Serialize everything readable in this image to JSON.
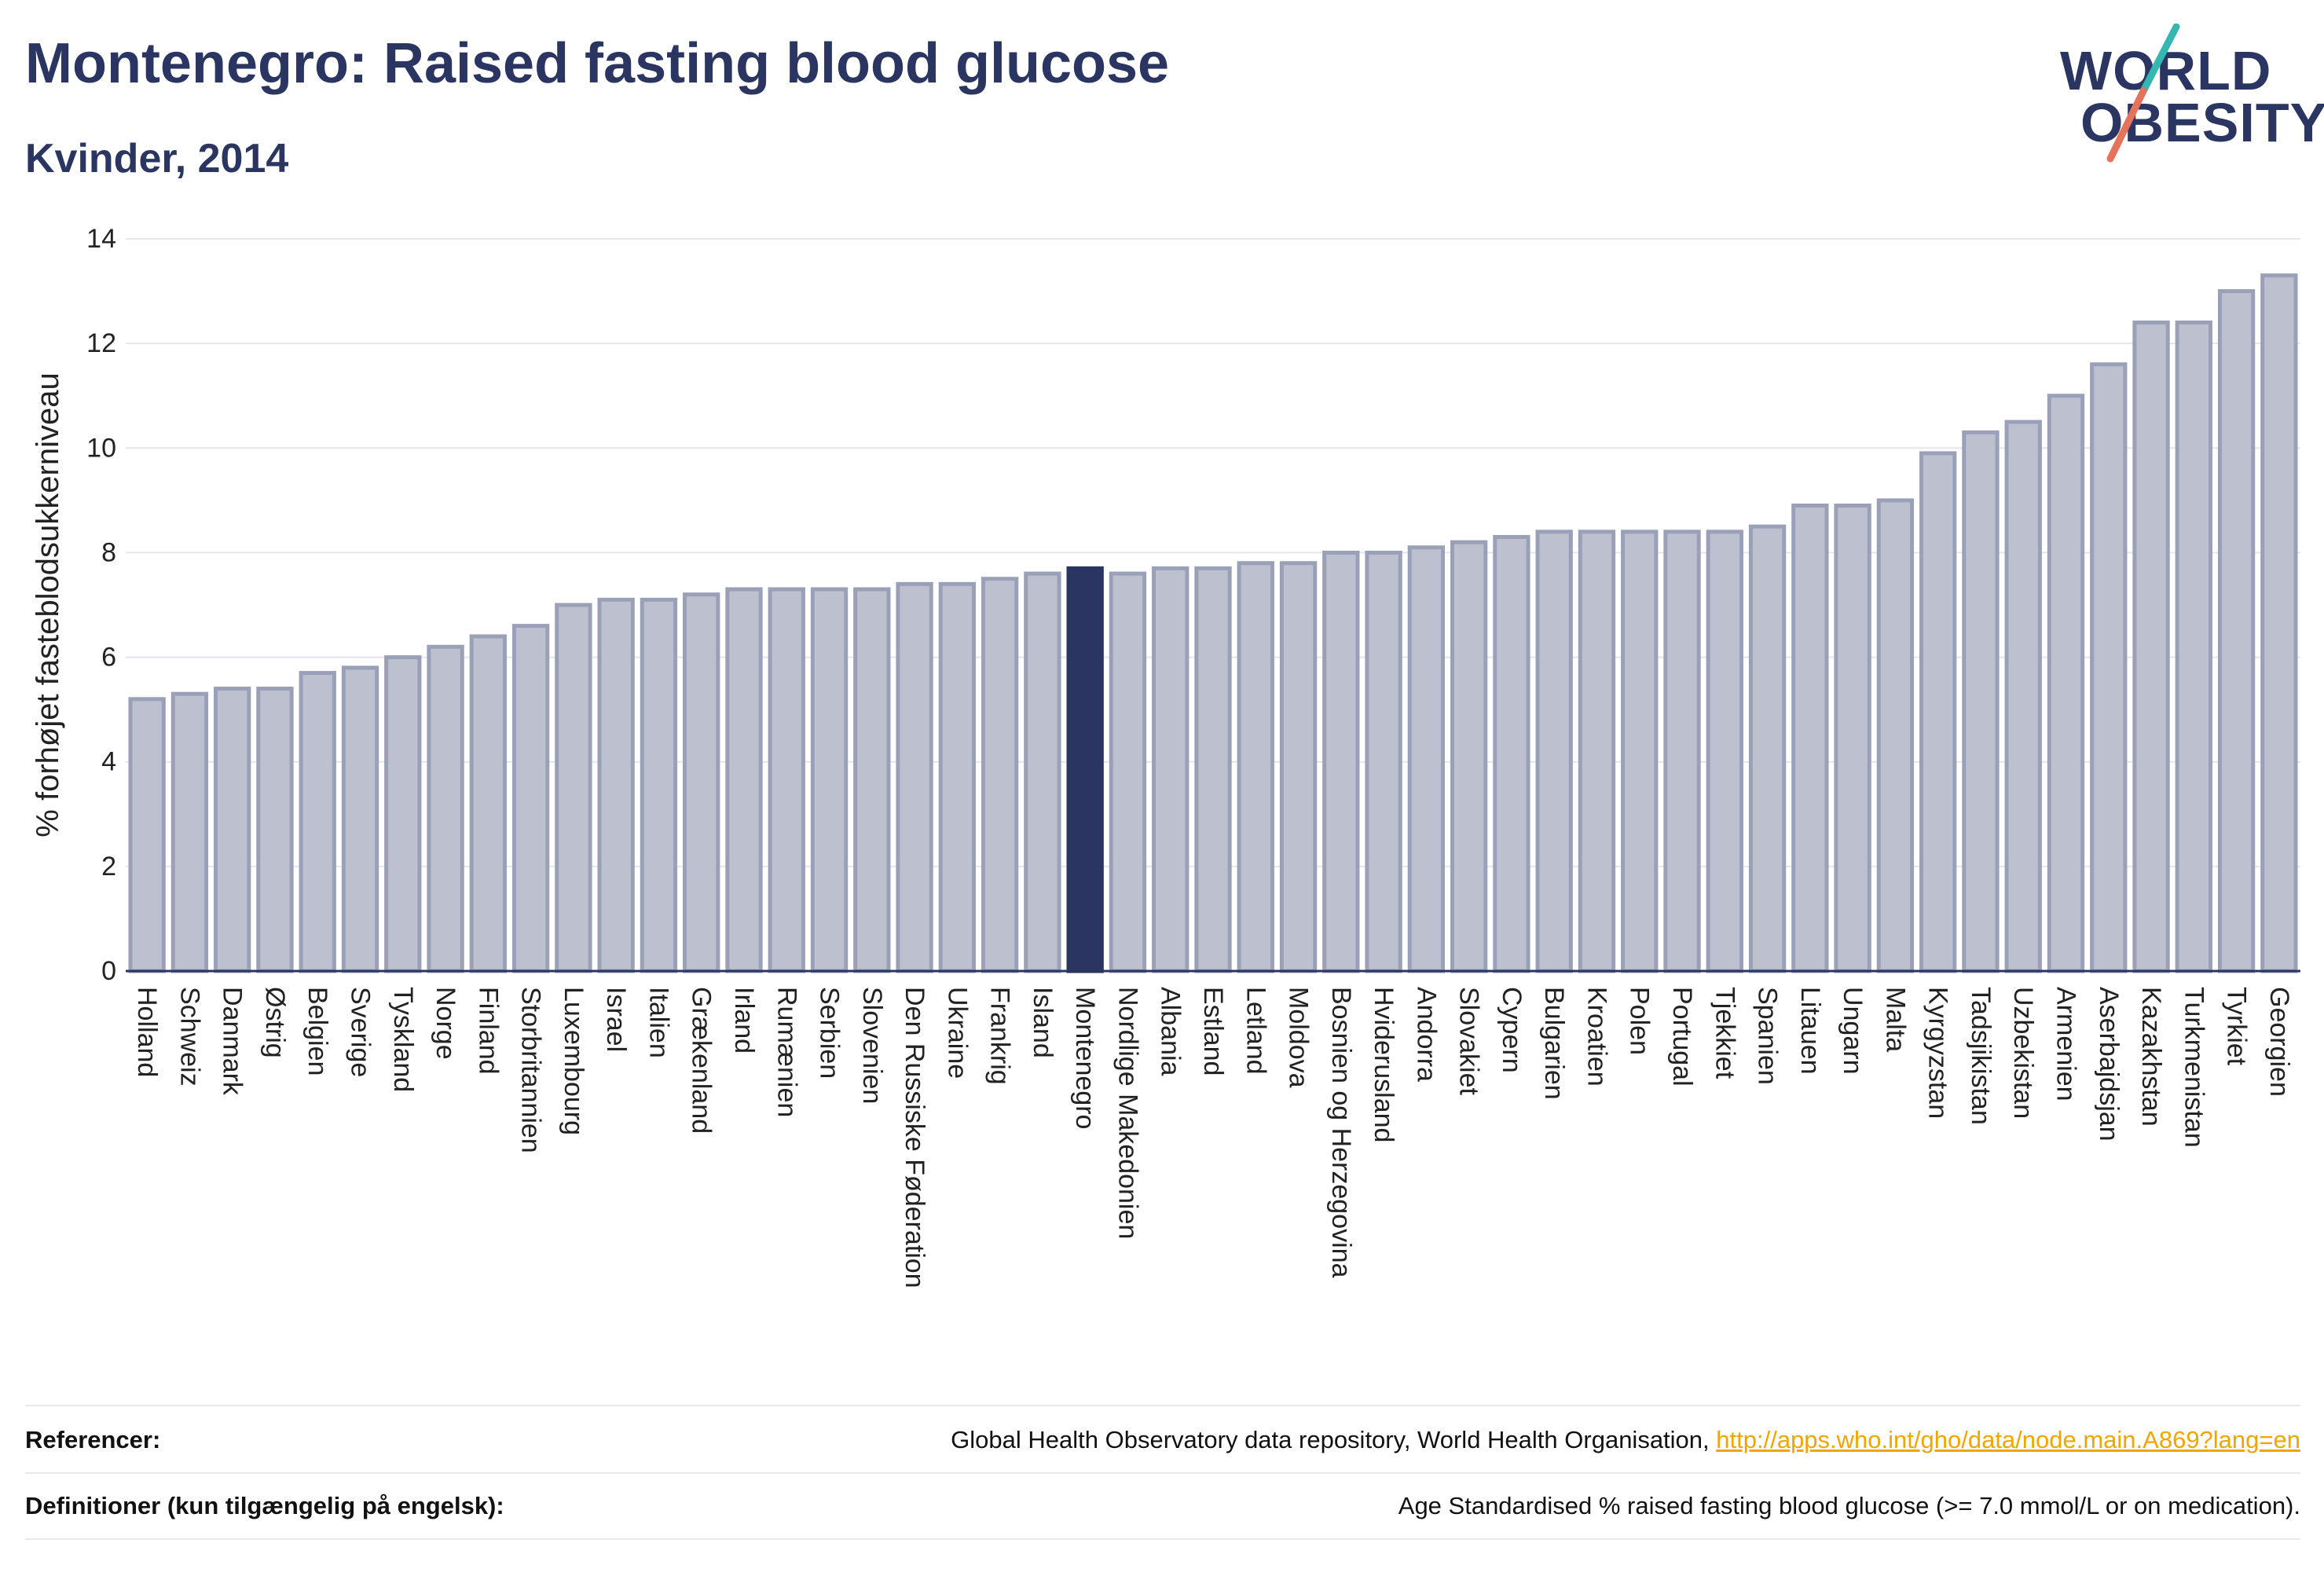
{
  "header": {
    "title": "Montenegro: Raised fasting blood glucose",
    "subtitle": "Kvinder, 2014",
    "logo_line1": "WORLD",
    "logo_line2": "OBESITY"
  },
  "colors": {
    "bar_fill": "#bdc1cf",
    "bar_stroke": "#9aa0b8",
    "highlight": "#2a3561",
    "grid": "#e4e6ec",
    "logo_teal": "#34b6b1",
    "logo_coral": "#e5735c",
    "link": "#f0a500"
  },
  "chart_data": {
    "type": "bar",
    "ylabel": "% forhøjet fasteblodsukkerniveau",
    "ylim": [
      0,
      14
    ],
    "yticks": [
      0,
      2,
      4,
      6,
      8,
      10,
      12,
      14
    ],
    "highlight": "Montenegro",
    "categories": [
      "Holland",
      "Schweiz",
      "Danmark",
      "Østrig",
      "Belgien",
      "Sverige",
      "Tyskland",
      "Norge",
      "Finland",
      "Storbritannien",
      "Luxembourg",
      "Israel",
      "Italien",
      "Grækenland",
      "Irland",
      "Rumænien",
      "Serbien",
      "Slovenien",
      "Den Russiske Føderation",
      "Ukraine",
      "Frankrig",
      "Island",
      "Montenegro",
      "Nordlige Makedonien",
      "Albania",
      "Estland",
      "Letland",
      "Moldova",
      "Bosnien og Herzegovina",
      "Hviderusland",
      "Andorra",
      "Slovakiet",
      "Cypern",
      "Bulgarien",
      "Kroatien",
      "Polen",
      "Portugal",
      "Tjekkiet",
      "Spanien",
      "Litauen",
      "Ungarn",
      "Malta",
      "Kyrgyzstan",
      "Tadsjikistan",
      "Uzbekistan",
      "Armenien",
      "Aserbajdsjan",
      "Kazakhstan",
      "Turkmenistan",
      "Tyrkiet",
      "Georgien"
    ],
    "values": [
      5.2,
      5.3,
      5.4,
      5.4,
      5.7,
      5.8,
      6.0,
      6.2,
      6.4,
      6.6,
      7.0,
      7.1,
      7.1,
      7.2,
      7.3,
      7.3,
      7.3,
      7.3,
      7.4,
      7.4,
      7.5,
      7.6,
      7.7,
      7.6,
      7.7,
      7.7,
      7.8,
      7.8,
      8.0,
      8.0,
      8.1,
      8.2,
      8.3,
      8.4,
      8.4,
      8.4,
      8.4,
      8.4,
      8.5,
      8.9,
      8.9,
      9.0,
      9.9,
      10.3,
      10.5,
      11.0,
      11.6,
      12.4,
      12.4,
      13.0,
      13.3
    ]
  },
  "footer": {
    "references_label": "Referencer:",
    "references_text": "Global Health Observatory data repository, World Health Organisation,",
    "references_link": "http://apps.who.int/gho/data/node.main.A869?lang=en",
    "definitions_label": "Definitioner (kun tilgængelig på engelsk):",
    "definitions_text": "Age Standardised % raised fasting blood glucose (>= 7.0 mmol/L or on medication)."
  }
}
